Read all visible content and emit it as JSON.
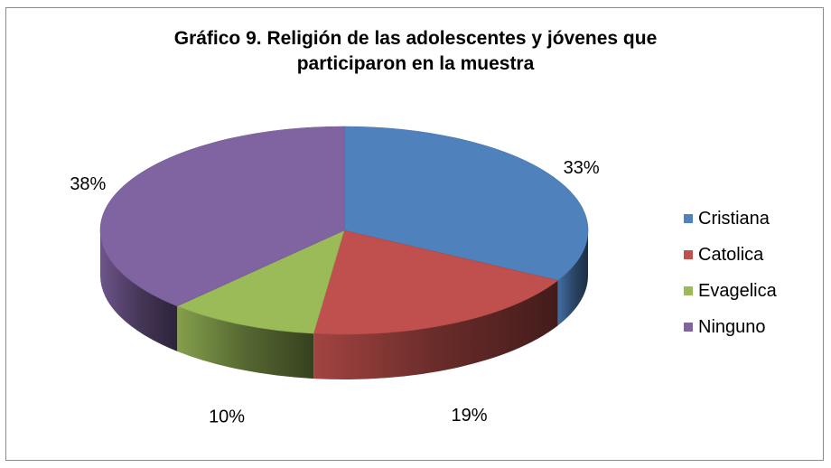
{
  "chart_data": {
    "type": "pie",
    "title_lines": [
      "Gráfico 9. Religión de las adolescentes y jóvenes que",
      "participaron en la muestra"
    ],
    "categories": [
      "Cristiana",
      "Catolica",
      "Evagelica",
      "Ninguno"
    ],
    "values": [
      33,
      19,
      10,
      38
    ],
    "labels": [
      "33%",
      "19%",
      "10%",
      "38%"
    ],
    "colors": [
      "#4f81bd",
      "#c0504d",
      "#9bbb59",
      "#8064a2"
    ],
    "style": "3d",
    "legend_position": "right"
  }
}
